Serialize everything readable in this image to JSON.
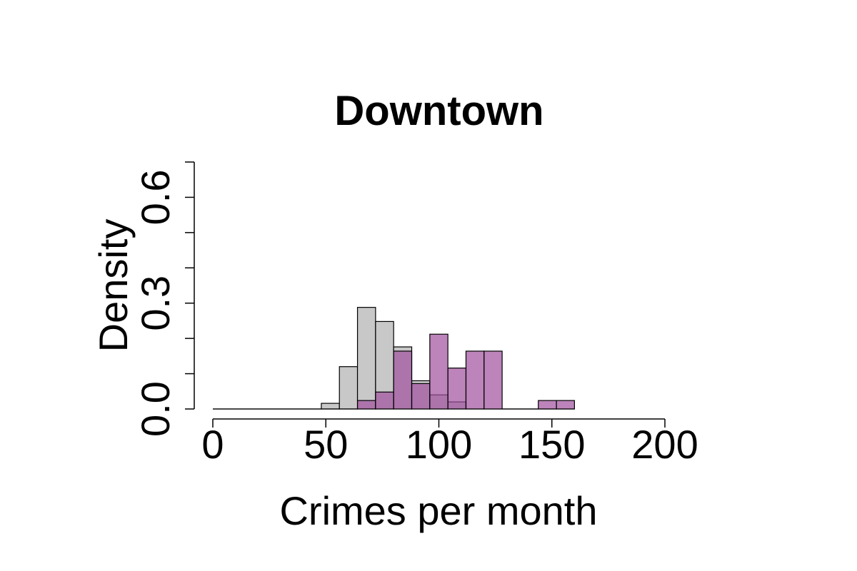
{
  "chart_data": {
    "type": "bar",
    "title": "Downtown",
    "xlabel": "Crimes per month",
    "ylabel": "Density",
    "xlim": [
      0,
      200
    ],
    "ylim": [
      0,
      0.7
    ],
    "xticks": [
      "0",
      "50",
      "100",
      "150",
      "200"
    ],
    "yticks": [
      "0.0",
      "0.3",
      "0.6"
    ],
    "ytick_values": [
      0,
      0.1,
      0.2,
      0.3,
      0.4,
      0.5,
      0.6,
      0.7
    ],
    "grid": false,
    "bin_width": 8,
    "series": [
      {
        "color": "#c8c8c8",
        "bins": [
          0,
          8,
          16,
          24,
          32,
          40,
          48,
          56,
          64,
          72,
          80,
          88,
          96,
          104,
          112,
          120,
          128,
          136,
          144,
          152
        ],
        "values": [
          0,
          0,
          0,
          0,
          0,
          0,
          0.016,
          0.12,
          0.288,
          0.248,
          0.176,
          0.08,
          0.04,
          0.02,
          0,
          0,
          0,
          0,
          0,
          0
        ]
      },
      {
        "color": "#a0509e",
        "opacity": 0.7,
        "bins": [
          0,
          8,
          16,
          24,
          32,
          40,
          48,
          56,
          64,
          72,
          80,
          88,
          96,
          104,
          112,
          120,
          128,
          136,
          144,
          152
        ],
        "values": [
          0,
          0,
          0,
          0,
          0,
          0,
          0,
          0,
          0.024,
          0.048,
          0.164,
          0.072,
          0.212,
          0.116,
          0.164,
          0.164,
          0,
          0,
          0.024,
          0.024
        ]
      }
    ]
  }
}
